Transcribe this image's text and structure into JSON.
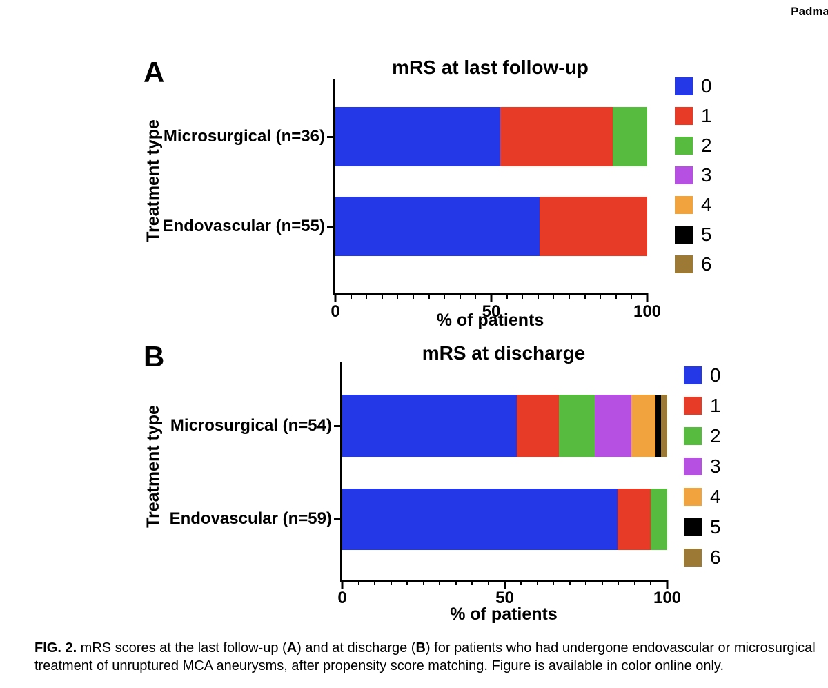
{
  "running_head": "Padma",
  "caption": {
    "parts": [
      {
        "text": "FIG. 2.",
        "bold": true
      },
      {
        "text": " mRS scores at the last follow-up (",
        "bold": false
      },
      {
        "text": "A",
        "bold": true
      },
      {
        "text": ") and at discharge (",
        "bold": false
      },
      {
        "text": "B",
        "bold": true
      },
      {
        "text": ") for patients who had undergone endovascular or microsurgical treatment of unruptured MCA aneurysms, after propensity score matching. Figure is available in color online only.",
        "bold": false
      }
    ]
  },
  "chart_data": [
    {
      "id": "a",
      "panel_label": "A",
      "type": "bar",
      "orientation": "horizontal",
      "stacked": true,
      "title": "mRS at last follow-up",
      "xlabel": "% of patients",
      "ylabel": "Treatment type",
      "xlim": [
        0,
        100
      ],
      "xticks": [
        0,
        50,
        100
      ],
      "minor_tick_step": 5,
      "grid": false,
      "legend_position": "right",
      "categories": [
        "Microsurgical (n=36)",
        "Endovascular (n=55)"
      ],
      "series": [
        {
          "name": "0",
          "color": "#2438e8",
          "values": [
            52.8,
            65.5
          ]
        },
        {
          "name": "1",
          "color": "#e73b28",
          "values": [
            36.1,
            34.5
          ]
        },
        {
          "name": "2",
          "color": "#56bb3e",
          "values": [
            11.1,
            0
          ]
        },
        {
          "name": "3",
          "color": "#b550e2",
          "values": [
            0,
            0
          ]
        },
        {
          "name": "4",
          "color": "#f1a33d",
          "values": [
            0,
            0
          ]
        },
        {
          "name": "5",
          "color": "#000000",
          "values": [
            0,
            0
          ]
        },
        {
          "name": "6",
          "color": "#9c7a35",
          "values": [
            0,
            0
          ]
        }
      ]
    },
    {
      "id": "b",
      "panel_label": "B",
      "type": "bar",
      "orientation": "horizontal",
      "stacked": true,
      "title": "mRS at discharge",
      "xlabel": "% of patients",
      "ylabel": "Treatment type",
      "xlim": [
        0,
        100
      ],
      "xticks": [
        0,
        50,
        100
      ],
      "minor_tick_step": 5,
      "grid": false,
      "legend_position": "right",
      "categories": [
        "Microsurgical (n=54)",
        "Endovascular (n=59)"
      ],
      "series": [
        {
          "name": "0",
          "color": "#2438e8",
          "values": [
            53.7,
            84.7
          ]
        },
        {
          "name": "1",
          "color": "#e73b28",
          "values": [
            13.0,
            10.2
          ]
        },
        {
          "name": "2",
          "color": "#56bb3e",
          "values": [
            11.1,
            5.1
          ]
        },
        {
          "name": "3",
          "color": "#b550e2",
          "values": [
            11.1,
            0
          ]
        },
        {
          "name": "4",
          "color": "#f1a33d",
          "values": [
            7.4,
            0
          ]
        },
        {
          "name": "5",
          "color": "#000000",
          "values": [
            1.9,
            0
          ]
        },
        {
          "name": "6",
          "color": "#9c7a35",
          "values": [
            1.9,
            0
          ]
        }
      ]
    }
  ]
}
